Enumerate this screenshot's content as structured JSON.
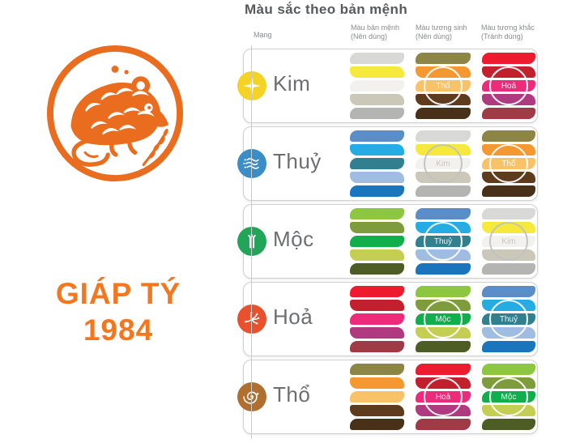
{
  "title": "Màu sắc theo bản mệnh",
  "zodiac": {
    "name": "GIÁP TÝ",
    "year": "1984",
    "text_color": "#F4771F",
    "rat_color": "#EA6C1F",
    "emblem": "rat-papercut-icon"
  },
  "table": {
    "col_headers": {
      "mang": "Mạng",
      "ban_menh": "Màu bản mệnh",
      "ban_menh_sub": "(Nên dùng)",
      "tuong_sinh": "Màu tương sinh",
      "tuong_sinh_sub": "(Nên dùng)",
      "tuong_khac": "Màu tương khắc",
      "tuong_khac_sub": "(Tránh dùng)"
    },
    "label_color": "#6D6E71",
    "rows": [
      {
        "key": "kim",
        "element": "Kim",
        "icon": "star-icon",
        "icon_color": "#F4D324",
        "ban_menh": {
          "colors": [
            "#D8D8D6",
            "#F6E93B",
            "#F2F1ED",
            "#CBC8BA",
            "#B4B4B2"
          ]
        },
        "tuong_sinh": {
          "label": "Thổ",
          "label_color": "#FFFFFF",
          "colors": [
            "#8D8545",
            "#F49931",
            "#F9C269",
            "#5F3B1E",
            "#483019"
          ]
        },
        "tuong_khac": {
          "label": "Hoả",
          "label_color": "#FFFFFF",
          "colors": [
            "#EC1B2E",
            "#C2202D",
            "#EE2A7B",
            "#B03A80",
            "#9E3B44"
          ]
        }
      },
      {
        "key": "thuy",
        "element": "Thuỷ",
        "icon": "waves-icon",
        "icon_color": "#3A8DC5",
        "ban_menh": {
          "colors": [
            "#5B8DC8",
            "#24ACE3",
            "#31808F",
            "#9FBDE0",
            "#1B75BC"
          ]
        },
        "tuong_sinh": {
          "label": "Kim",
          "label_color": "#C2C2C0",
          "colors": [
            "#D8D8D6",
            "#F6E93B",
            "#F2F1ED",
            "#CBC8BA",
            "#B4B4B2"
          ]
        },
        "tuong_khac": {
          "label": "Thổ",
          "label_color": "#FFFFFF",
          "colors": [
            "#8D8545",
            "#F49931",
            "#F9C269",
            "#5F3B1E",
            "#483019"
          ]
        }
      },
      {
        "key": "moc",
        "element": "Mộc",
        "icon": "bamboo-icon",
        "icon_color": "#22A558",
        "ban_menh": {
          "colors": [
            "#8DC63F",
            "#7E9C3C",
            "#10AF4C",
            "#C3CE52",
            "#4D5D24"
          ]
        },
        "tuong_sinh": {
          "label": "Thuỷ",
          "label_color": "#FFFFFF",
          "colors": [
            "#5B8DC8",
            "#24ACE3",
            "#31808F",
            "#9FBDE0",
            "#1B75BC"
          ]
        },
        "tuong_khac": {
          "label": "Kim",
          "label_color": "#C2C2C0",
          "colors": [
            "#D8D8D6",
            "#F6E93B",
            "#F2F1ED",
            "#CBC8BA",
            "#B4B4B2"
          ]
        }
      },
      {
        "key": "hoa",
        "element": "Hoả",
        "icon": "spark-icon",
        "icon_color": "#E8502E",
        "ban_menh": {
          "colors": [
            "#EC1B2E",
            "#C2202D",
            "#EE2A7B",
            "#B03A80",
            "#9E3B44"
          ]
        },
        "tuong_sinh": {
          "label": "Mộc",
          "label_color": "#FFFFFF",
          "colors": [
            "#8DC63F",
            "#7E9C3C",
            "#10AF4C",
            "#C3CE52",
            "#4D5D24"
          ]
        },
        "tuong_khac": {
          "label": "Thuỷ",
          "label_color": "#FFFFFF",
          "colors": [
            "#5B8DC8",
            "#24ACE3",
            "#31808F",
            "#9FBDE0",
            "#1B75BC"
          ]
        }
      },
      {
        "key": "tho",
        "element": "Thổ",
        "icon": "spiral-icon",
        "icon_color": "#B06F2E",
        "ban_menh": {
          "colors": [
            "#8D8545",
            "#F49931",
            "#F9C269",
            "#5F3B1E",
            "#483019"
          ]
        },
        "tuong_sinh": {
          "label": "Hoả",
          "label_color": "#FFFFFF",
          "colors": [
            "#EC1B2E",
            "#C2202D",
            "#EE2A7B",
            "#B03A80",
            "#9E3B44"
          ]
        },
        "tuong_khac": {
          "label": "Mộc",
          "label_color": "#FFFFFF",
          "colors": [
            "#8DC63F",
            "#7E9C3C",
            "#10AF4C",
            "#C3CE52",
            "#4D5D24"
          ]
        }
      }
    ]
  },
  "chart_data": {
    "type": "table",
    "title": "Màu sắc theo bản mệnh",
    "columns": [
      "Mạng",
      "Màu bản mệnh (Nên dùng)",
      "Màu tương sinh (Nên dùng)",
      "Màu tương khắc (Tránh dùng)"
    ],
    "rows": [
      {
        "mang": "Kim",
        "ban_menh": "Kim",
        "tuong_sinh": "Thổ",
        "tuong_khac": "Hoả"
      },
      {
        "mang": "Thuỷ",
        "ban_menh": "Thuỷ",
        "tuong_sinh": "Kim",
        "tuong_khac": "Thổ"
      },
      {
        "mang": "Mộc",
        "ban_menh": "Mộc",
        "tuong_sinh": "Thuỷ",
        "tuong_khac": "Kim"
      },
      {
        "mang": "Hoả",
        "ban_menh": "Hoả",
        "tuong_sinh": "Mộc",
        "tuong_khac": "Thuỷ"
      },
      {
        "mang": "Thổ",
        "ban_menh": "Thổ",
        "tuong_sinh": "Hoả",
        "tuong_khac": "Mộc"
      }
    ],
    "palettes": {
      "Kim": [
        "#D8D8D6",
        "#F6E93B",
        "#F2F1ED",
        "#CBC8BA",
        "#B4B4B2"
      ],
      "Thuỷ": [
        "#5B8DC8",
        "#24ACE3",
        "#31808F",
        "#9FBDE0",
        "#1B75BC"
      ],
      "Mộc": [
        "#8DC63F",
        "#7E9C3C",
        "#10AF4C",
        "#C3CE52",
        "#4D5D24"
      ],
      "Hoả": [
        "#EC1B2E",
        "#C2202D",
        "#EE2A7B",
        "#B03A80",
        "#9E3B44"
      ],
      "Thổ": [
        "#8D8545",
        "#F49931",
        "#F9C269",
        "#5F3B1E",
        "#483019"
      ]
    }
  }
}
